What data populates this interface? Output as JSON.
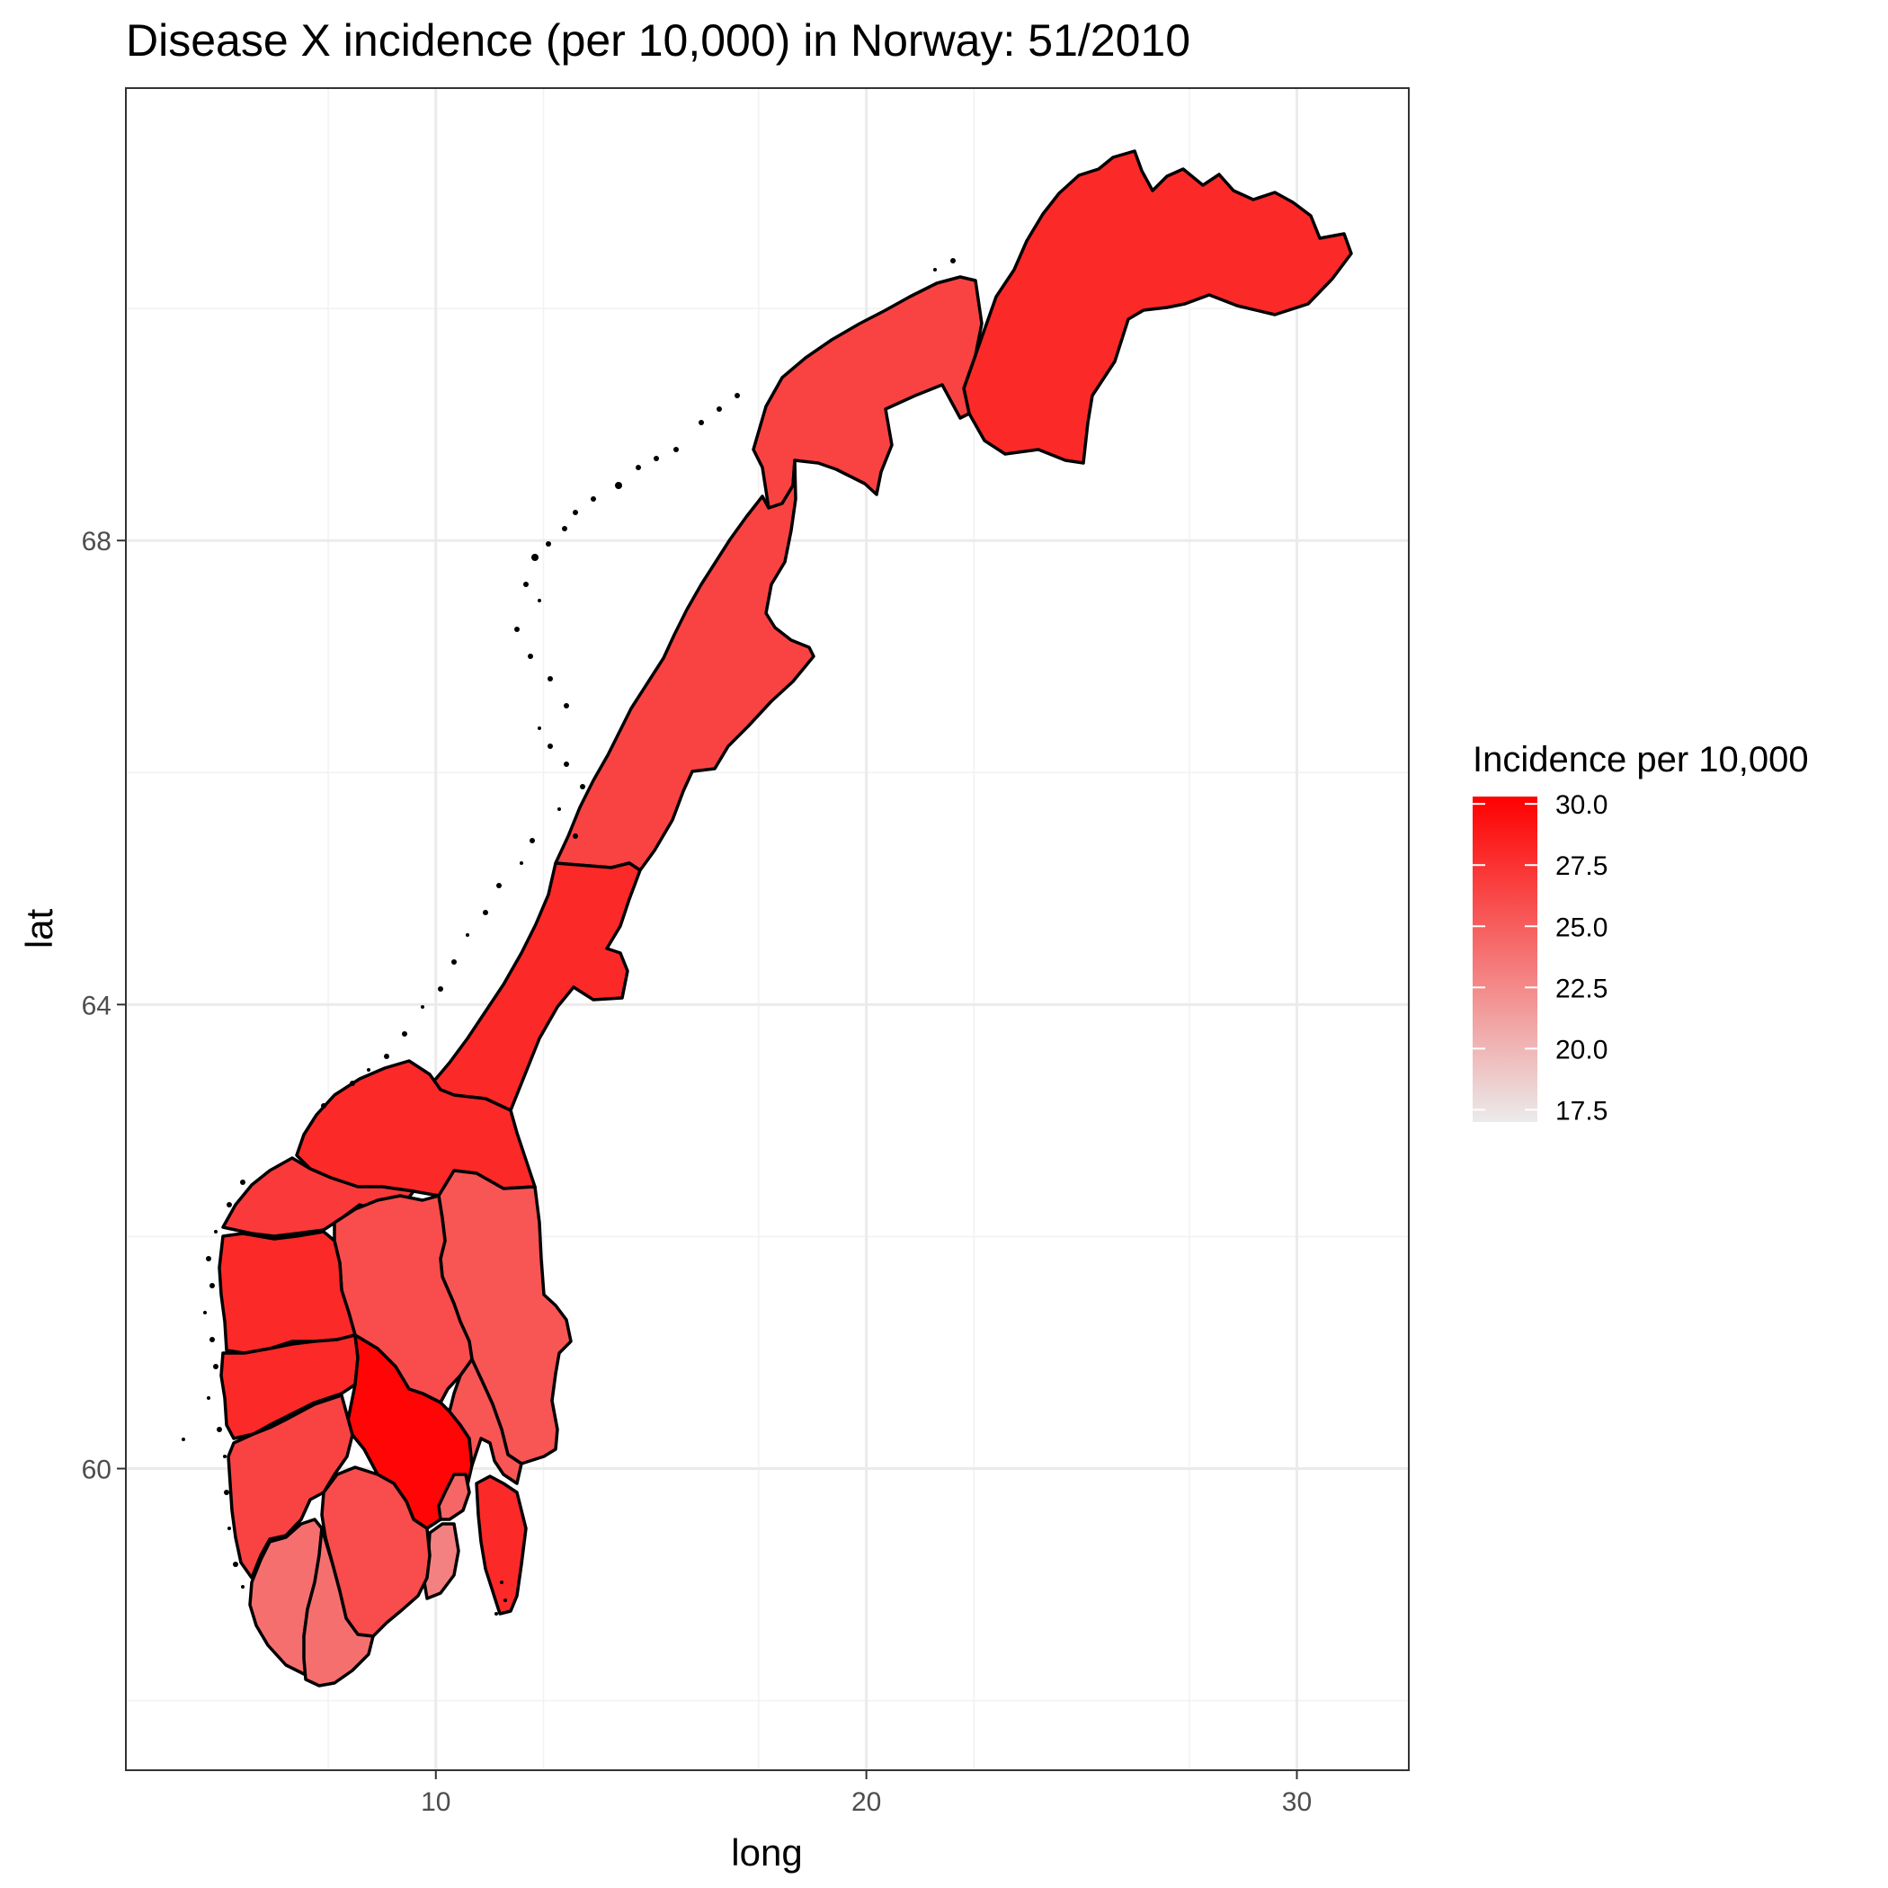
{
  "chart_data": {
    "type": "choropleth-map",
    "title": "Disease X incidence (per 10,000) in Norway: 51/2010",
    "xlabel": "long",
    "ylabel": "lat",
    "xlim": [
      2.8,
      32.6
    ],
    "ylim": [
      57.4,
      71.9
    ],
    "x_ticks": [
      10,
      20,
      30
    ],
    "y_ticks": [
      60,
      64,
      68
    ],
    "x_tick_labels": [
      "10",
      "20",
      "30"
    ],
    "y_tick_labels": [
      "60",
      "64",
      "68"
    ],
    "grid": true,
    "legend_position": "right",
    "legend": {
      "title": "Incidence per 10,000",
      "range": [
        17.0,
        30.3
      ],
      "ticks": [
        30.0,
        27.5,
        25.0,
        22.5,
        20.0,
        17.5
      ],
      "tick_labels": [
        "30.0",
        "27.5",
        "25.0",
        "22.5",
        "20.0",
        "17.5"
      ],
      "low_color": "#ebebeb",
      "high_color": "#ff0000"
    },
    "regions": [
      {
        "id": "finnmark",
        "incidence": 28.0
      },
      {
        "id": "troms",
        "incidence": 26.5
      },
      {
        "id": "nordland",
        "incidence": 26.5
      },
      {
        "id": "nord-trondelag",
        "incidence": 28.0
      },
      {
        "id": "sor-trondelag",
        "incidence": 28.0
      },
      {
        "id": "more-og-romsdal",
        "incidence": 27.0
      },
      {
        "id": "hedmark",
        "incidence": 25.5
      },
      {
        "id": "oppland",
        "incidence": 26.0
      },
      {
        "id": "sogn-og-fjordane",
        "incidence": 28.0
      },
      {
        "id": "hordaland",
        "incidence": 28.0
      },
      {
        "id": "buskerud",
        "incidence": 30.0
      },
      {
        "id": "akershus",
        "incidence": 25.5
      },
      {
        "id": "oslo",
        "incidence": 24.5
      },
      {
        "id": "ostfold",
        "incidence": 28.0
      },
      {
        "id": "vestfold",
        "incidence": 23.0
      },
      {
        "id": "telemark",
        "incidence": 26.0
      },
      {
        "id": "rogaland",
        "incidence": 26.5
      },
      {
        "id": "vest-agder",
        "incidence": 24.0
      },
      {
        "id": "aust-agder",
        "incidence": 24.0
      }
    ]
  }
}
